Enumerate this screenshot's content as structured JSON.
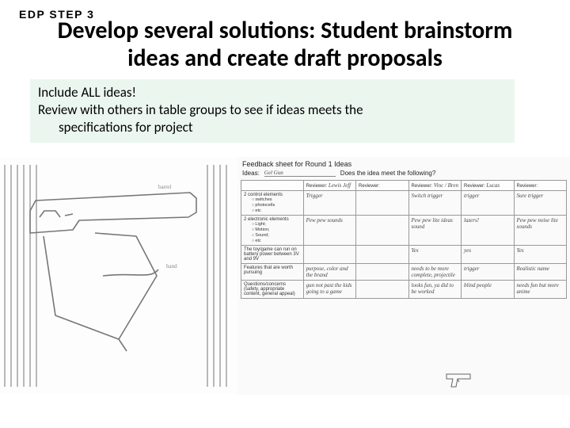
{
  "step_label": "EDP STEP 3",
  "title_line1": "Develop several solutions: Student brainstorm",
  "title_line2": "ideas and create draft proposals",
  "highlight": {
    "line1": "Include ALL ideas!",
    "line2": "Review with others in table groups to see if ideas meets the",
    "line3": "specifications for project"
  },
  "feedback": {
    "title": "Feedback sheet for Round 1 Ideas",
    "ideas_label": "Ideas:",
    "ideas_value": "Gel Gun",
    "meets_label": "Does the idea meet the following?",
    "reviewer_prefix": "Reviewer:",
    "reviewers": [
      "Lewis  Jeff",
      "",
      "Vinc / Bren",
      "Lucas",
      ""
    ],
    "rows": [
      {
        "label": "2 control elements",
        "bullets": [
          "switches",
          "photocells",
          "etc"
        ],
        "cells": [
          "Trigger",
          "",
          "Switch trigger",
          "trigger",
          "Sure trigger"
        ]
      },
      {
        "label": "2 electronic elements",
        "bullets": [
          "Light;",
          "Motion;",
          "Sound;",
          "etc"
        ],
        "cells": [
          "Pew pew sounds",
          "",
          "Pew pew lite ideas sound",
          "lazers!",
          "Pew pew noise lite sounds"
        ]
      },
      {
        "label": "The toy/game can run on battery power between 3V and 9V",
        "bullets": [],
        "cells": [
          "",
          "",
          "Yes",
          "yes",
          "Yes"
        ]
      },
      {
        "label": "Features that are worth pursuing",
        "bullets": [],
        "cells": [
          "purpose, color and the brand",
          "",
          "needs to be more complete, projectile",
          "trigger",
          "Realistic name"
        ]
      },
      {
        "label": "Questions/concerns (safety, appropriate content, general appeal)",
        "bullets": [],
        "cells": [
          "gun not past the kids going to a game",
          "",
          "looks fun, ya did to be worked",
          "blind people",
          "needs fun but more anime"
        ]
      }
    ]
  },
  "colors": {
    "highlight_bg": "#ebf6ef",
    "table_border": "#999999",
    "sketch_line": "#888888"
  }
}
